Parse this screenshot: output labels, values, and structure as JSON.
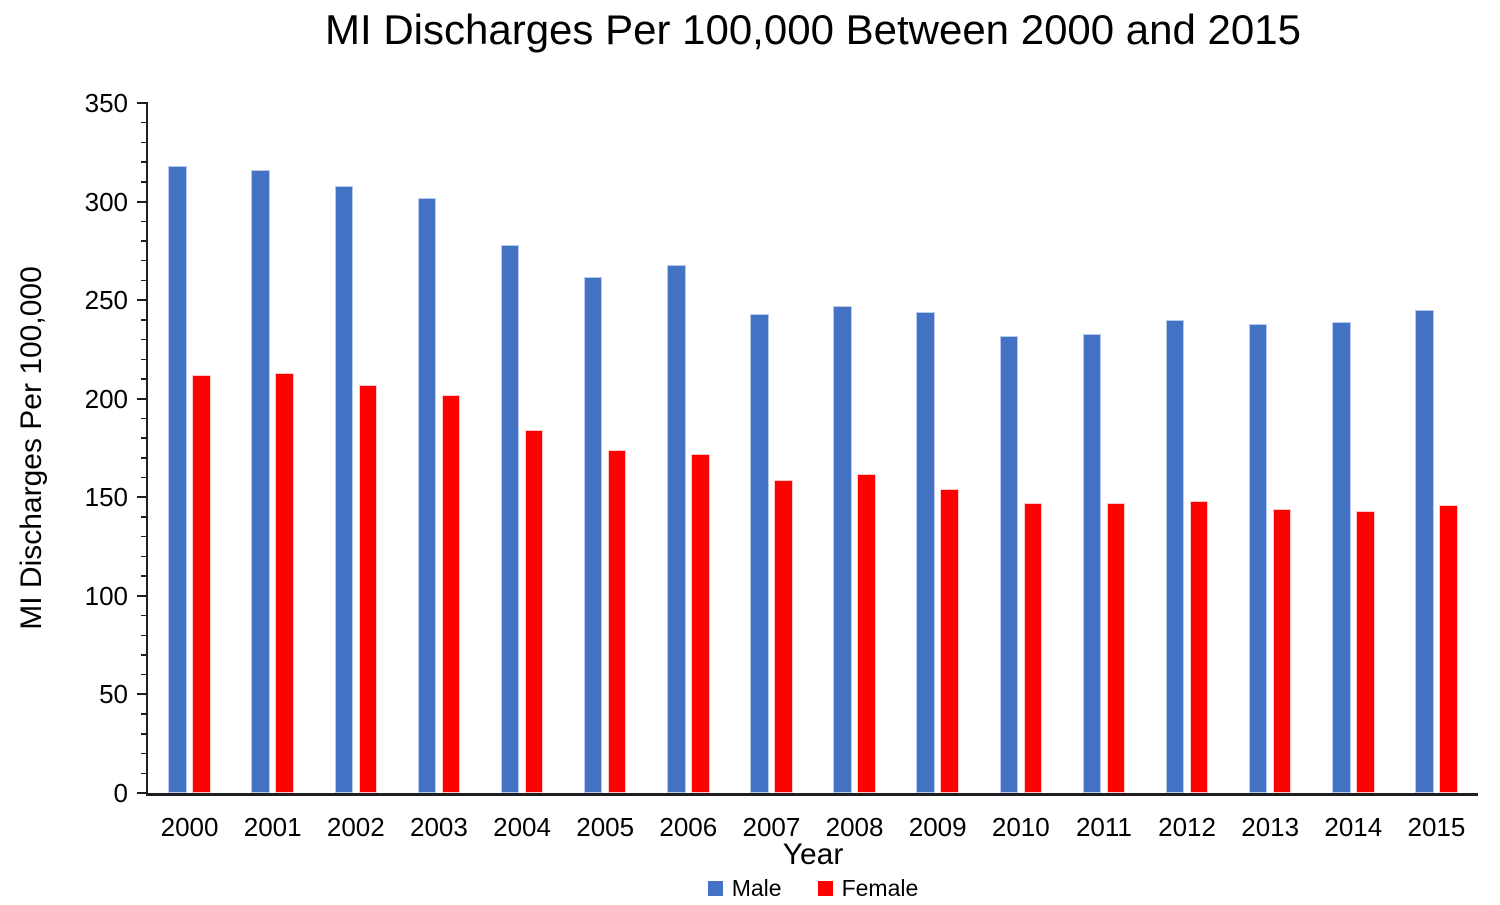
{
  "chart_data": {
    "type": "bar",
    "title": "MI Discharges Per 100,000 Between 2000 and 2015",
    "xlabel": "Year",
    "ylabel": "MI Discharges Per 100,000",
    "categories": [
      "2000",
      "2001",
      "2002",
      "2003",
      "2004",
      "2005",
      "2006",
      "2007",
      "2008",
      "2009",
      "2010",
      "2011",
      "2012",
      "2013",
      "2014",
      "2015"
    ],
    "series": [
      {
        "name": "Male",
        "color": "#4472C4",
        "values": [
          318,
          316,
          308,
          302,
          278,
          262,
          268,
          243,
          247,
          244,
          232,
          233,
          240,
          238,
          239,
          245
        ]
      },
      {
        "name": "Female",
        "color": "#FF0000",
        "values": [
          212,
          213,
          207,
          202,
          184,
          174,
          172,
          159,
          162,
          154,
          147,
          147,
          148,
          144,
          143,
          146
        ]
      }
    ],
    "ylim": [
      0,
      350
    ],
    "ytick_major": 50,
    "ytick_minor": 10,
    "yticks": [
      "0",
      "50",
      "100",
      "150",
      "200",
      "250",
      "300",
      "350"
    ],
    "grid": false,
    "legend_position": "bottom",
    "axis_color": "#1f1f1f",
    "text_color": "#000000"
  }
}
